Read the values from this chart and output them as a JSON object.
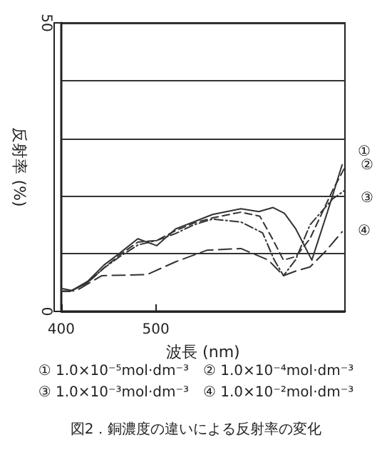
{
  "chart_data": {
    "type": "line",
    "title": "図2．銅濃度の違いによる反射率の変化",
    "xlabel": "波長 (nm)",
    "ylabel": "反射率 (%)",
    "annotations": [
      "① 1.0×10⁻⁵mol·dm⁻³　② 1.0×10⁻⁴mol·dm⁻³",
      "③ 1.0×10⁻³mol·dm⁻³　④ 1.0×10⁻²mol·dm⁻³"
    ],
    "xlim": [
      400,
      700
    ],
    "xticks": [
      400,
      500
    ],
    "ylim": [
      0,
      50
    ],
    "yticks": [
      0,
      {
        "value": 10,
        "label": null
      },
      {
        "value": 20,
        "label": null
      },
      {
        "value": 30,
        "label": null
      },
      {
        "value": 40,
        "label": null
      },
      50
    ],
    "grid": "y",
    "marker": "none",
    "series": [
      {
        "name": "①",
        "color": "#333333",
        "line_style": "solid",
        "x": [
          400,
          410,
          428,
          445,
          462,
          481,
          501,
          521,
          540,
          560,
          590,
          609,
          624,
          636,
          648,
          665,
          682,
          697
        ],
        "values": [
          3.5,
          3.5,
          5.2,
          8,
          10.1,
          12.6,
          11.4,
          14.3,
          15.5,
          16.8,
          17.8,
          17.3,
          18,
          17,
          14.3,
          8.9,
          17.5,
          25.4
        ]
      },
      {
        "name": "②",
        "color": "#333333",
        "line_style": "dashed",
        "x": [
          400,
          410,
          428,
          445,
          462,
          481,
          501,
          521,
          540,
          560,
          590,
          610,
          622,
          635,
          648,
          663,
          687,
          700
        ],
        "values": [
          3.5,
          3.5,
          5,
          7.5,
          9.8,
          12,
          12.3,
          14,
          15.3,
          16.2,
          17.2,
          16.5,
          13,
          8.9,
          9.5,
          12.6,
          21,
          25
        ]
      },
      {
        "name": "③",
        "color": "#333333",
        "line_style": "dashdot",
        "x": [
          400,
          410,
          428,
          445,
          462,
          481,
          501,
          521,
          540,
          560,
          590,
          613,
          625,
          635,
          648,
          663,
          687,
          700
        ],
        "values": [
          3.5,
          3.5,
          5,
          7.5,
          9.5,
          11.5,
          12.3,
          13.5,
          15,
          16,
          15.5,
          13.6,
          9,
          6.2,
          9,
          15,
          19.5,
          21
        ]
      },
      {
        "name": "④",
        "color": "#333333",
        "line_style": "longdash",
        "x": [
          400,
          415,
          443,
          470,
          491,
          521,
          554,
          590,
          619,
          635,
          648,
          663,
          680,
          697
        ],
        "values": [
          4,
          3.5,
          6.2,
          6.3,
          6.4,
          8.6,
          10.6,
          10.9,
          8.9,
          6.2,
          7,
          7.7,
          10.5,
          13.8
        ]
      }
    ]
  }
}
